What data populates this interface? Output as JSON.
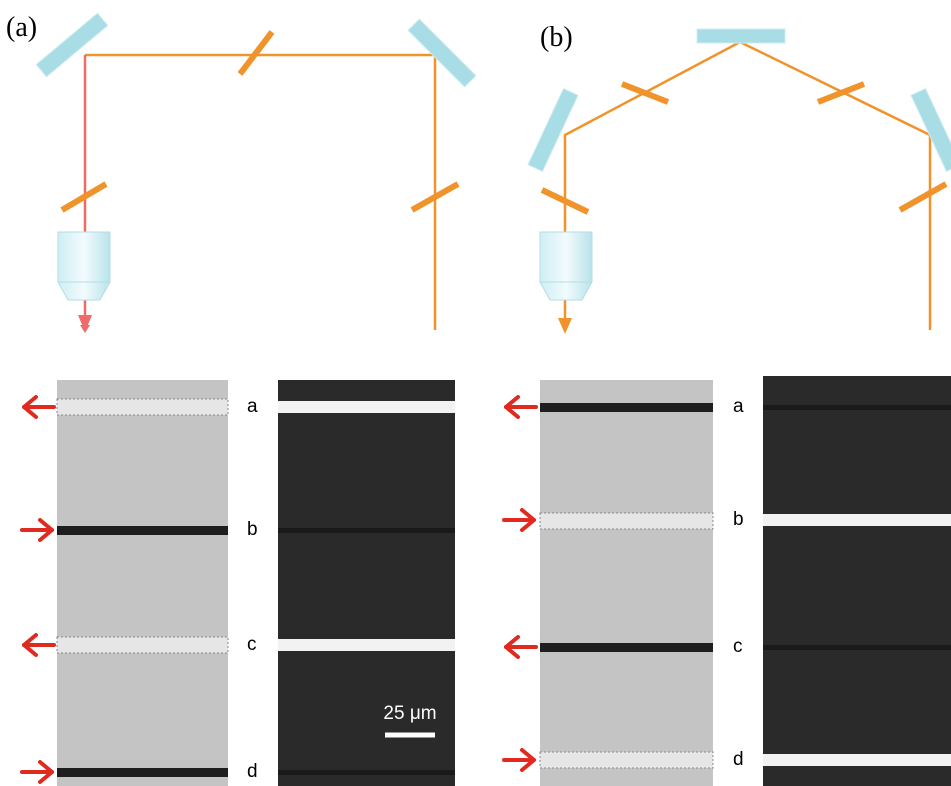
{
  "panels": [
    {
      "label": "(a)",
      "rows": [
        "a",
        "b",
        "c",
        "d"
      ],
      "scale_bar": "25 μm"
    },
    {
      "label": "(b)",
      "rows": [
        "a",
        "b",
        "c",
        "d"
      ]
    }
  ]
}
